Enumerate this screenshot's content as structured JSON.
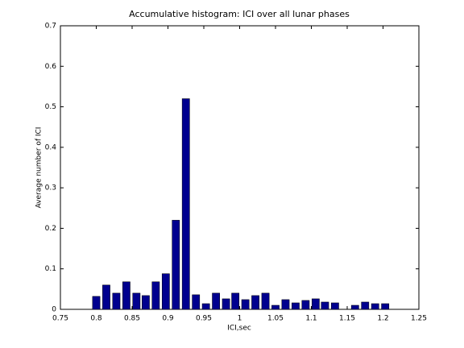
{
  "chart_data": {
    "type": "bar",
    "title": "Accumulative histogram: ICI over all lunar phases",
    "xlabel": "ICI,sec",
    "ylabel": "Average number of ICI",
    "x": [
      0.8,
      0.814,
      0.828,
      0.842,
      0.856,
      0.869,
      0.883,
      0.897,
      0.911,
      0.925,
      0.939,
      0.953,
      0.967,
      0.981,
      0.994,
      1.008,
      1.022,
      1.036,
      1.05,
      1.064,
      1.078,
      1.092,
      1.106,
      1.119,
      1.133,
      1.147,
      1.161,
      1.175,
      1.189,
      1.203
    ],
    "values": [
      0.032,
      0.06,
      0.04,
      0.068,
      0.04,
      0.034,
      0.068,
      0.088,
      0.22,
      0.52,
      0.036,
      0.014,
      0.04,
      0.026,
      0.04,
      0.024,
      0.034,
      0.04,
      0.01,
      0.024,
      0.016,
      0.022,
      0.026,
      0.018,
      0.016,
      0,
      0.01,
      0.018,
      0.014,
      0.014
    ],
    "color": "#00008f",
    "xlim": [
      0.75,
      1.25
    ],
    "xticks": [
      0.75,
      0.8,
      0.85,
      0.9,
      0.95,
      1,
      1.05,
      1.1,
      1.15,
      1.2,
      1.25
    ],
    "ylim": [
      0,
      0.7
    ],
    "yticks": [
      0,
      0.1,
      0.2,
      0.3,
      0.4,
      0.5,
      0.6,
      0.7
    ],
    "grid": false
  }
}
